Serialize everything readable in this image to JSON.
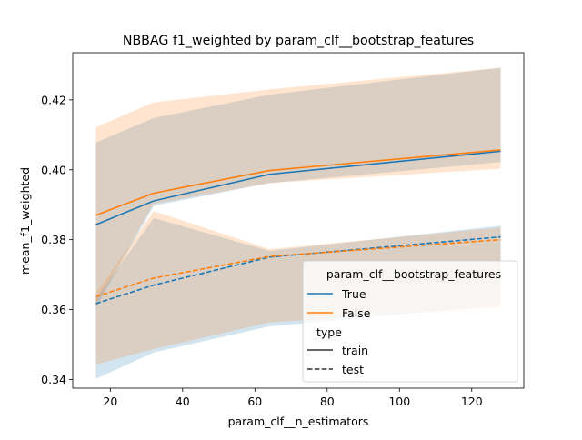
{
  "chart_data": {
    "type": "line",
    "title": "NBBAG f1_weighted by param_clf__bootstrap_features",
    "xlabel": "param_clf__n_estimators",
    "ylabel": "mean_f1_weighted",
    "xlim": [
      9.6,
      134.4
    ],
    "ylim": [
      0.3375,
      0.4335
    ],
    "xticks": [
      20,
      40,
      60,
      80,
      100,
      120
    ],
    "yticks": [
      0.34,
      0.36,
      0.38,
      0.4,
      0.42
    ],
    "ytick_labels": [
      "0.34",
      "0.36",
      "0.38",
      "0.40",
      "0.42"
    ],
    "x": [
      16,
      32,
      64,
      128
    ],
    "grid": false,
    "legend": {
      "position": "lower-right",
      "hue_title": "param_clf__bootstrap_features",
      "style_title": "type",
      "style_entries": [
        "train",
        "test"
      ]
    },
    "series": [
      {
        "name": "True",
        "type": "train",
        "color": "#1f77b4",
        "dashed": false,
        "values": [
          0.3843,
          0.3911,
          0.3987,
          0.4053
        ],
        "band_low": [
          0.3605,
          0.3897,
          0.3962,
          0.4022
        ],
        "band_high": [
          0.4078,
          0.4148,
          0.4215,
          0.4292
        ]
      },
      {
        "name": "True",
        "type": "test",
        "color": "#1f77b4",
        "dashed": false,
        "values": [
          0.3617,
          0.367,
          0.375,
          0.3808
        ],
        "band_low": [
          0.3402,
          0.3477,
          0.3552,
          0.3612
        ],
        "band_high": [
          0.363,
          0.3862,
          0.3768,
          0.384
        ]
      },
      {
        "name": "False",
        "type": "train",
        "color": "#ff7f0e",
        "dashed": false,
        "values": [
          0.387,
          0.3933,
          0.3998,
          0.4057
        ],
        "band_low": [
          0.3617,
          0.3902,
          0.3962,
          0.4003
        ],
        "band_high": [
          0.4122,
          0.4193,
          0.423,
          0.4292
        ]
      },
      {
        "name": "False",
        "type": "test",
        "color": "#ff7f0e",
        "dashed": false,
        "values": [
          0.3637,
          0.369,
          0.3752,
          0.38
        ],
        "band_low": [
          0.3443,
          0.3487,
          0.3563,
          0.3605
        ],
        "band_high": [
          0.3645,
          0.3882,
          0.3773,
          0.3835
        ]
      }
    ]
  },
  "legend_labels": {
    "true": "True",
    "false": "False"
  },
  "colors": {
    "blue": "#1f77b4",
    "orange": "#ff7f0e"
  }
}
